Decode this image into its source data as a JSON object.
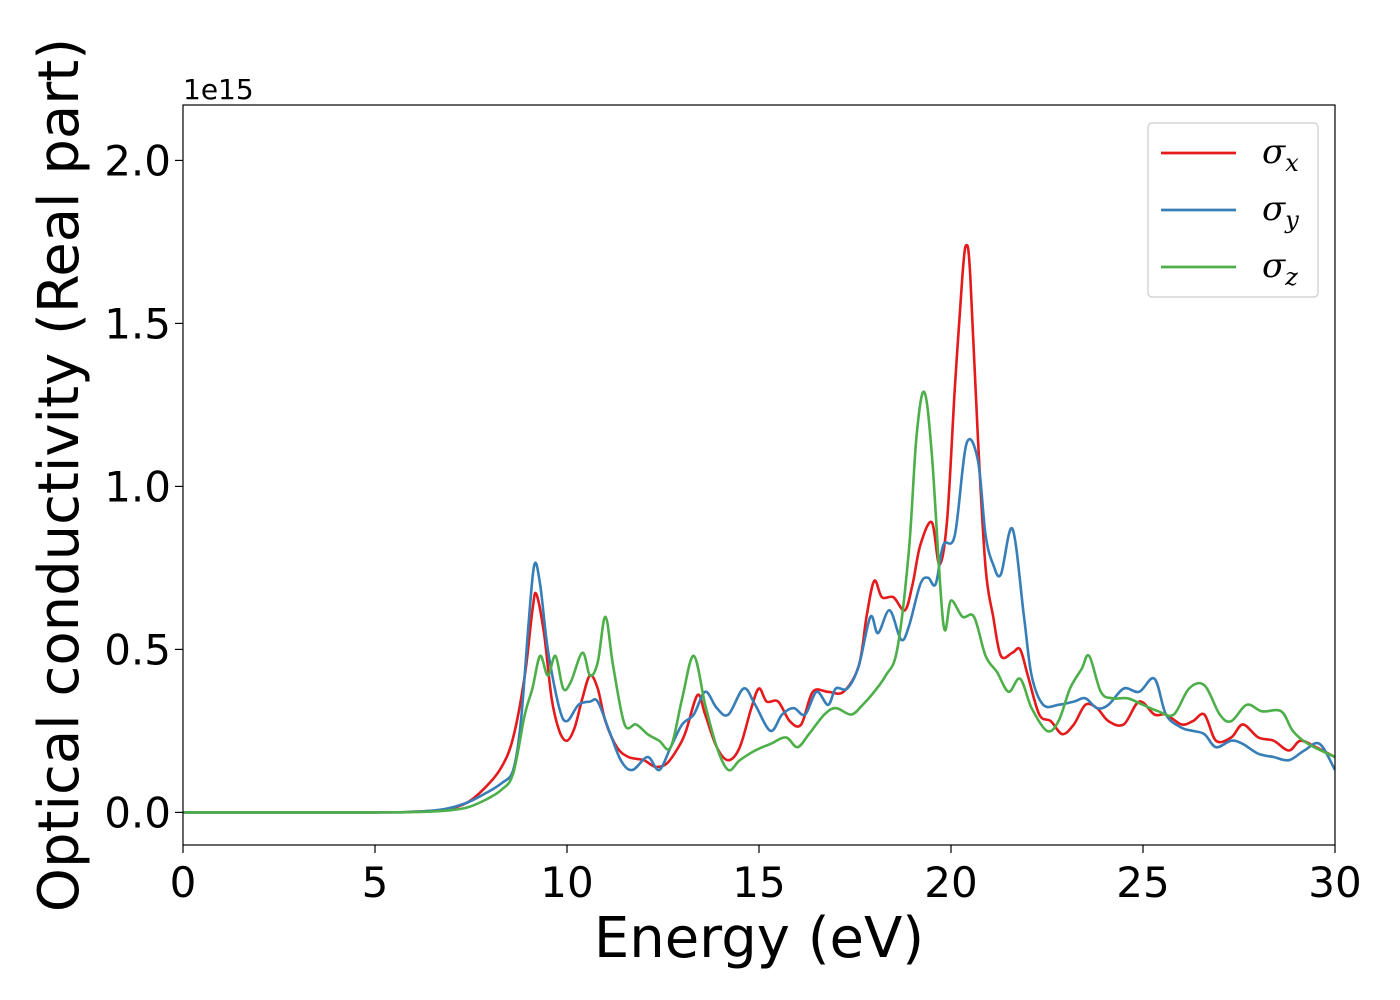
{
  "chart_data": {
    "type": "line",
    "xlabel": "Energy (eV)",
    "ylabel": "Optical conductivity (Real part)",
    "y_offset_label": "1e15",
    "xlim": [
      0,
      30
    ],
    "ylim": [
      -0.1,
      2.17
    ],
    "x_ticks": [
      0,
      5,
      10,
      15,
      20,
      25,
      30
    ],
    "x_tick_labels": [
      "0",
      "5",
      "10",
      "15",
      "20",
      "25",
      "30"
    ],
    "y_ticks": [
      0.0,
      0.5,
      1.0,
      1.5,
      2.0
    ],
    "y_tick_labels": [
      "0.0",
      "0.5",
      "1.0",
      "1.5",
      "2.0"
    ],
    "grid": false,
    "legend_position": "top-right",
    "series": [
      {
        "name": "σx",
        "symbol": "σ",
        "subscript": "x",
        "color": "#e41a1c",
        "points": [
          [
            0,
            0
          ],
          [
            5,
            0
          ],
          [
            6,
            0.002
          ],
          [
            6.8,
            0.008
          ],
          [
            7.4,
            0.03
          ],
          [
            7.9,
            0.08
          ],
          [
            8.3,
            0.14
          ],
          [
            8.6,
            0.23
          ],
          [
            8.9,
            0.42
          ],
          [
            9.1,
            0.62
          ],
          [
            9.2,
            0.67
          ],
          [
            9.4,
            0.55
          ],
          [
            9.6,
            0.35
          ],
          [
            9.8,
            0.25
          ],
          [
            10.0,
            0.22
          ],
          [
            10.2,
            0.26
          ],
          [
            10.4,
            0.35
          ],
          [
            10.6,
            0.42
          ],
          [
            10.8,
            0.38
          ],
          [
            11.0,
            0.28
          ],
          [
            11.3,
            0.2
          ],
          [
            11.6,
            0.17
          ],
          [
            12.0,
            0.16
          ],
          [
            12.3,
            0.14
          ],
          [
            12.6,
            0.15
          ],
          [
            12.9,
            0.2
          ],
          [
            13.1,
            0.25
          ],
          [
            13.4,
            0.36
          ],
          [
            13.6,
            0.3
          ],
          [
            13.9,
            0.2
          ],
          [
            14.2,
            0.16
          ],
          [
            14.5,
            0.2
          ],
          [
            14.8,
            0.32
          ],
          [
            15.0,
            0.38
          ],
          [
            15.2,
            0.34
          ],
          [
            15.5,
            0.34
          ],
          [
            15.8,
            0.28
          ],
          [
            16.1,
            0.27
          ],
          [
            16.4,
            0.37
          ],
          [
            16.8,
            0.37
          ],
          [
            17.2,
            0.37
          ],
          [
            17.6,
            0.45
          ],
          [
            17.8,
            0.6
          ],
          [
            18.0,
            0.71
          ],
          [
            18.2,
            0.66
          ],
          [
            18.5,
            0.66
          ],
          [
            18.8,
            0.62
          ],
          [
            19.0,
            0.7
          ],
          [
            19.2,
            0.82
          ],
          [
            19.5,
            0.89
          ],
          [
            19.7,
            0.76
          ],
          [
            19.9,
            0.9
          ],
          [
            20.1,
            1.3
          ],
          [
            20.3,
            1.65
          ],
          [
            20.4,
            1.74
          ],
          [
            20.5,
            1.65
          ],
          [
            20.7,
            1.15
          ],
          [
            20.9,
            0.75
          ],
          [
            21.1,
            0.6
          ],
          [
            21.3,
            0.48
          ],
          [
            21.6,
            0.49
          ],
          [
            21.8,
            0.5
          ],
          [
            22.0,
            0.42
          ],
          [
            22.3,
            0.3
          ],
          [
            22.6,
            0.28
          ],
          [
            22.9,
            0.24
          ],
          [
            23.2,
            0.27
          ],
          [
            23.5,
            0.33
          ],
          [
            23.8,
            0.32
          ],
          [
            24.1,
            0.28
          ],
          [
            24.5,
            0.27
          ],
          [
            24.9,
            0.34
          ],
          [
            25.3,
            0.3
          ],
          [
            25.6,
            0.3
          ],
          [
            26.0,
            0.27
          ],
          [
            26.3,
            0.28
          ],
          [
            26.6,
            0.3
          ],
          [
            26.9,
            0.22
          ],
          [
            27.3,
            0.23
          ],
          [
            27.6,
            0.27
          ],
          [
            28.0,
            0.23
          ],
          [
            28.4,
            0.22
          ],
          [
            28.8,
            0.19
          ],
          [
            29.1,
            0.22
          ],
          [
            29.5,
            0.2
          ],
          [
            30.0,
            0.17
          ]
        ]
      },
      {
        "name": "σy",
        "symbol": "σ",
        "subscript": "y",
        "color": "#377eb8",
        "points": [
          [
            0,
            0
          ],
          [
            5,
            0
          ],
          [
            6,
            0.002
          ],
          [
            6.8,
            0.01
          ],
          [
            7.4,
            0.03
          ],
          [
            7.9,
            0.06
          ],
          [
            8.3,
            0.09
          ],
          [
            8.6,
            0.13
          ],
          [
            8.8,
            0.28
          ],
          [
            9.0,
            0.58
          ],
          [
            9.15,
            0.76
          ],
          [
            9.3,
            0.7
          ],
          [
            9.5,
            0.5
          ],
          [
            9.8,
            0.32
          ],
          [
            10.0,
            0.28
          ],
          [
            10.3,
            0.33
          ],
          [
            10.6,
            0.34
          ],
          [
            10.8,
            0.34
          ],
          [
            11.1,
            0.25
          ],
          [
            11.4,
            0.16
          ],
          [
            11.7,
            0.13
          ],
          [
            12.1,
            0.17
          ],
          [
            12.4,
            0.13
          ],
          [
            12.7,
            0.2
          ],
          [
            13.0,
            0.27
          ],
          [
            13.3,
            0.3
          ],
          [
            13.6,
            0.37
          ],
          [
            13.9,
            0.32
          ],
          [
            14.2,
            0.3
          ],
          [
            14.6,
            0.38
          ],
          [
            14.9,
            0.33
          ],
          [
            15.3,
            0.25
          ],
          [
            15.6,
            0.3
          ],
          [
            15.9,
            0.32
          ],
          [
            16.2,
            0.3
          ],
          [
            16.5,
            0.37
          ],
          [
            16.8,
            0.33
          ],
          [
            17.0,
            0.38
          ],
          [
            17.3,
            0.38
          ],
          [
            17.6,
            0.45
          ],
          [
            17.9,
            0.6
          ],
          [
            18.1,
            0.55
          ],
          [
            18.4,
            0.62
          ],
          [
            18.7,
            0.53
          ],
          [
            18.9,
            0.57
          ],
          [
            19.2,
            0.7
          ],
          [
            19.4,
            0.72
          ],
          [
            19.6,
            0.7
          ],
          [
            19.8,
            0.82
          ],
          [
            20.1,
            0.85
          ],
          [
            20.4,
            1.13
          ],
          [
            20.7,
            1.08
          ],
          [
            20.9,
            0.85
          ],
          [
            21.1,
            0.76
          ],
          [
            21.3,
            0.73
          ],
          [
            21.6,
            0.87
          ],
          [
            21.9,
            0.6
          ],
          [
            22.1,
            0.42
          ],
          [
            22.4,
            0.33
          ],
          [
            22.8,
            0.33
          ],
          [
            23.2,
            0.34
          ],
          [
            23.5,
            0.35
          ],
          [
            23.8,
            0.32
          ],
          [
            24.1,
            0.33
          ],
          [
            24.5,
            0.38
          ],
          [
            24.9,
            0.37
          ],
          [
            25.3,
            0.41
          ],
          [
            25.6,
            0.3
          ],
          [
            26.0,
            0.26
          ],
          [
            26.3,
            0.25
          ],
          [
            26.6,
            0.24
          ],
          [
            26.9,
            0.2
          ],
          [
            27.3,
            0.22
          ],
          [
            27.6,
            0.21
          ],
          [
            28.0,
            0.18
          ],
          [
            28.4,
            0.17
          ],
          [
            28.8,
            0.16
          ],
          [
            29.2,
            0.19
          ],
          [
            29.6,
            0.21
          ],
          [
            30.0,
            0.13
          ]
        ]
      },
      {
        "name": "σz",
        "symbol": "σ",
        "subscript": "z",
        "color": "#4daf4a",
        "points": [
          [
            0,
            0
          ],
          [
            5,
            0
          ],
          [
            6,
            0.001
          ],
          [
            6.8,
            0.005
          ],
          [
            7.4,
            0.015
          ],
          [
            7.9,
            0.04
          ],
          [
            8.3,
            0.07
          ],
          [
            8.6,
            0.12
          ],
          [
            8.9,
            0.3
          ],
          [
            9.1,
            0.38
          ],
          [
            9.3,
            0.48
          ],
          [
            9.5,
            0.42
          ],
          [
            9.7,
            0.48
          ],
          [
            9.9,
            0.38
          ],
          [
            10.1,
            0.4
          ],
          [
            10.4,
            0.49
          ],
          [
            10.6,
            0.42
          ],
          [
            10.8,
            0.46
          ],
          [
            11.0,
            0.6
          ],
          [
            11.2,
            0.45
          ],
          [
            11.5,
            0.27
          ],
          [
            11.8,
            0.27
          ],
          [
            12.1,
            0.24
          ],
          [
            12.4,
            0.22
          ],
          [
            12.7,
            0.2
          ],
          [
            13.0,
            0.35
          ],
          [
            13.3,
            0.48
          ],
          [
            13.6,
            0.33
          ],
          [
            13.9,
            0.2
          ],
          [
            14.2,
            0.13
          ],
          [
            14.5,
            0.16
          ],
          [
            14.9,
            0.19
          ],
          [
            15.3,
            0.21
          ],
          [
            15.7,
            0.23
          ],
          [
            16.0,
            0.2
          ],
          [
            16.3,
            0.24
          ],
          [
            16.7,
            0.3
          ],
          [
            17.0,
            0.32
          ],
          [
            17.4,
            0.3
          ],
          [
            17.7,
            0.33
          ],
          [
            18.0,
            0.37
          ],
          [
            18.3,
            0.42
          ],
          [
            18.6,
            0.5
          ],
          [
            18.9,
            0.8
          ],
          [
            19.1,
            1.15
          ],
          [
            19.3,
            1.29
          ],
          [
            19.5,
            1.1
          ],
          [
            19.8,
            0.58
          ],
          [
            20.0,
            0.65
          ],
          [
            20.3,
            0.6
          ],
          [
            20.6,
            0.6
          ],
          [
            20.9,
            0.48
          ],
          [
            21.2,
            0.43
          ],
          [
            21.5,
            0.37
          ],
          [
            21.8,
            0.41
          ],
          [
            22.1,
            0.32
          ],
          [
            22.5,
            0.25
          ],
          [
            22.8,
            0.28
          ],
          [
            23.1,
            0.38
          ],
          [
            23.4,
            0.44
          ],
          [
            23.6,
            0.48
          ],
          [
            23.9,
            0.37
          ],
          [
            24.2,
            0.35
          ],
          [
            24.6,
            0.35
          ],
          [
            25.0,
            0.33
          ],
          [
            25.4,
            0.31
          ],
          [
            25.8,
            0.3
          ],
          [
            26.2,
            0.38
          ],
          [
            26.6,
            0.39
          ],
          [
            27.0,
            0.3
          ],
          [
            27.3,
            0.28
          ],
          [
            27.7,
            0.33
          ],
          [
            28.1,
            0.31
          ],
          [
            28.6,
            0.31
          ],
          [
            28.9,
            0.25
          ],
          [
            29.3,
            0.21
          ],
          [
            30.0,
            0.17
          ]
        ]
      }
    ]
  }
}
